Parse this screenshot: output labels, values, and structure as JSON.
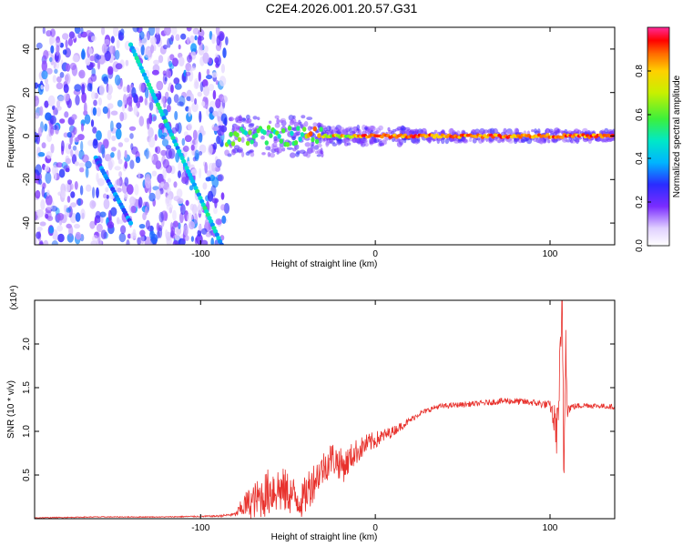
{
  "title": "C2E4.2026.001.20.57.G31",
  "colors": {
    "snr_line": "#e8322d",
    "axis": "#000000",
    "spectro_purple": "#5a1fd6",
    "spectro_light": "#cdb8f5"
  },
  "chart_data": [
    {
      "type": "heatmap",
      "title": "C2E4.2026.001.20.57.G31",
      "xlabel": "Height of straight line (km)",
      "ylabel": "Frequency (Hz)",
      "xlim": [
        -195,
        137
      ],
      "ylim": [
        -50,
        50
      ],
      "xticks": [
        -100,
        0,
        100
      ],
      "xtick_labels": [
        "-100",
        "0",
        "100"
      ],
      "yticks": [
        -40,
        -20,
        0,
        20,
        40
      ],
      "ytick_labels": [
        "-40",
        "-20",
        "0",
        "20",
        "40"
      ],
      "colorbar": {
        "label": "Normalized spectral amplitude",
        "range": [
          0,
          1
        ],
        "ticks": [
          0.0,
          0.2,
          0.4,
          0.6,
          0.8
        ],
        "tick_labels": [
          "0.0",
          "0.2",
          "0.4",
          "0.6",
          "0.8"
        ]
      },
      "features": {
        "noise_region_x": [
          -195,
          -85
        ],
        "carrier_line": {
          "x_start": -85,
          "x_end": 137,
          "frequency": 0
        },
        "main_streak": {
          "x": [
            -140,
            -88
          ],
          "frequency": [
            42,
            -50
          ]
        },
        "secondary_streak": {
          "x": [
            -160,
            -140
          ],
          "frequency": [
            -10,
            -40
          ]
        }
      }
    },
    {
      "type": "line",
      "xlabel": "Height of straight line (km)",
      "ylabel": "SNR (10 * v/v)",
      "y_multiplier_label": "(x10⁴)",
      "xlim": [
        -195,
        137
      ],
      "ylim": [
        0,
        2.5
      ],
      "xticks": [
        -100,
        0,
        100
      ],
      "xtick_labels": [
        "-100",
        "0",
        "100"
      ],
      "yticks": [
        0.5,
        1.0,
        1.5,
        2.0
      ],
      "ytick_labels": [
        "0.5",
        "1.0",
        "1.5",
        "2.0"
      ],
      "series": [
        {
          "name": "SNR",
          "x": [
            -195,
            -160,
            -120,
            -90,
            -80,
            -75,
            -65,
            -58,
            -50,
            -42,
            -38,
            -33,
            -25,
            -18,
            -12,
            -5,
            0,
            5,
            10,
            18,
            25,
            35,
            45,
            60,
            75,
            90,
            100,
            104,
            106,
            107,
            108,
            109,
            110,
            112,
            120,
            137
          ],
          "values": [
            0.01,
            0.02,
            0.02,
            0.03,
            0.05,
            0.15,
            0.25,
            0.35,
            0.3,
            0.2,
            0.35,
            0.5,
            0.7,
            0.6,
            0.75,
            0.85,
            0.9,
            0.95,
            1.0,
            1.1,
            1.2,
            1.28,
            1.3,
            1.32,
            1.35,
            1.33,
            1.3,
            1.0,
            1.8,
            2.3,
            0.5,
            2.2,
            1.25,
            1.28,
            1.3,
            1.28
          ],
          "noise_amplitude": [
            0.005,
            0.005,
            0.005,
            0.01,
            0.02,
            0.15,
            0.25,
            0.3,
            0.25,
            0.2,
            0.25,
            0.2,
            0.2,
            0.18,
            0.15,
            0.12,
            0.1,
            0.08,
            0.06,
            0.04,
            0.03,
            0.03,
            0.03,
            0.03,
            0.04,
            0.04,
            0.05,
            0.3,
            0.4,
            0.5,
            0.6,
            0.5,
            0.1,
            0.04,
            0.03,
            0.03
          ]
        }
      ]
    }
  ]
}
